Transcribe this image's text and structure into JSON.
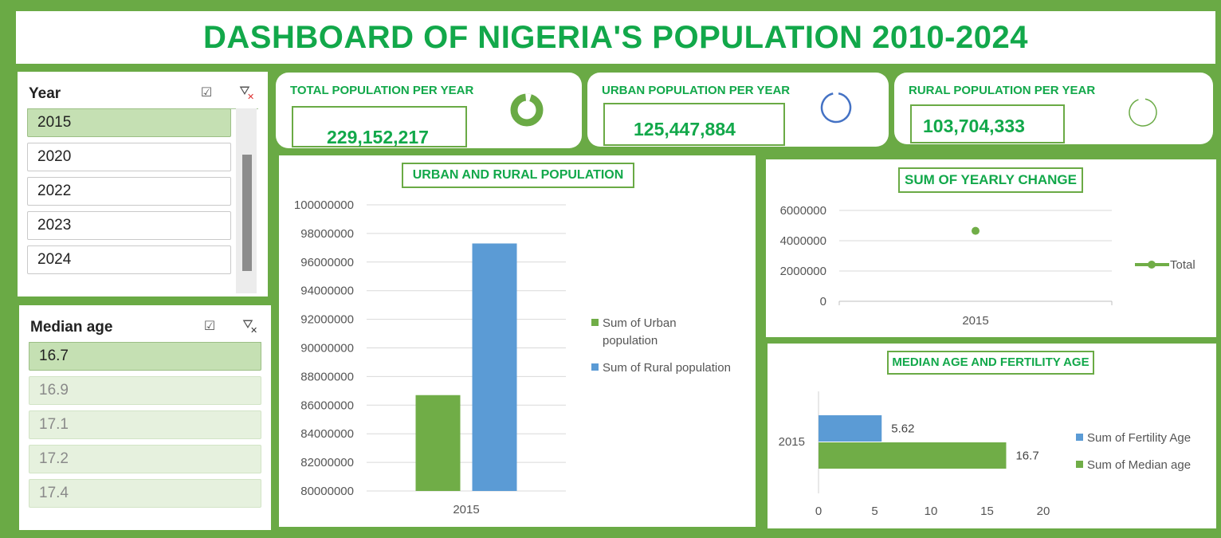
{
  "header": {
    "title": "DASHBOARD OF NIGERIA'S POPULATION 2010-2024"
  },
  "year_slicer": {
    "title": "Year",
    "items": [
      "2015",
      "2020",
      "2022",
      "2023",
      "2024"
    ],
    "selected": "2015"
  },
  "median_slicer": {
    "title": "Median age",
    "items": [
      "16.7",
      "16.9",
      "17.1",
      "17.2",
      "17.4"
    ],
    "selected": "16.7"
  },
  "kpis": {
    "total": {
      "label": "TOTAL POPULATION PER YEAR",
      "value": "229,152,217",
      "color": "#6aaa45"
    },
    "urban": {
      "label": "URBAN POPULATION PER YEAR",
      "value": "125,447,884",
      "color": "#4472c4"
    },
    "rural": {
      "label": "RURAL POPULATION PER YEAR",
      "value": "103,704,333",
      "color": "#6aaa45"
    }
  },
  "colors": {
    "green": "#70ad47",
    "blue": "#5b9bd5",
    "title_green": "#12a84a",
    "frame": "#6aaa45"
  },
  "chart_data": [
    {
      "type": "bar",
      "title": "URBAN AND RURAL POPULATION",
      "categories": [
        "2015"
      ],
      "series": [
        {
          "name": "Sum of Urban population",
          "values": [
            86700000
          ],
          "color": "#70ad47"
        },
        {
          "name": "Sum of Rural population",
          "values": [
            97300000
          ],
          "color": "#5b9bd5"
        }
      ],
      "ylim": [
        80000000,
        100000000
      ],
      "yticks": [
        80000000,
        82000000,
        84000000,
        86000000,
        88000000,
        90000000,
        92000000,
        94000000,
        96000000,
        98000000,
        100000000
      ],
      "grid": true,
      "legend": "right"
    },
    {
      "type": "line",
      "title": "SUM OF YEARLY CHANGE",
      "categories": [
        "2015"
      ],
      "series": [
        {
          "name": "Total",
          "values": [
            4650000
          ],
          "color": "#70ad47"
        }
      ],
      "ylim": [
        0,
        6000000
      ],
      "yticks": [
        0,
        2000000,
        4000000,
        6000000
      ],
      "grid": true,
      "legend": "right"
    },
    {
      "type": "bar",
      "orientation": "horizontal",
      "title": "MEDIAN AGE AND FERTILITY AGE",
      "categories": [
        "2015"
      ],
      "series": [
        {
          "name": "Sum of Fertility Age",
          "values": [
            5.62
          ],
          "labels": [
            "5.62"
          ],
          "color": "#5b9bd5"
        },
        {
          "name": "Sum of Median age",
          "values": [
            16.7
          ],
          "labels": [
            "16.7"
          ],
          "color": "#70ad47"
        }
      ],
      "xlim": [
        0,
        20
      ],
      "xticks": [
        0,
        5,
        10,
        15,
        20
      ],
      "grid": false,
      "legend": "right"
    }
  ]
}
